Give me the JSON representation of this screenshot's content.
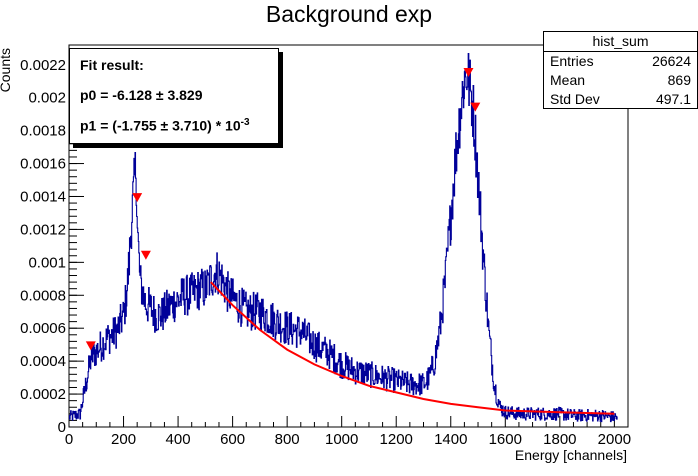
{
  "chart_data": {
    "type": "line",
    "title": "Background exp",
    "xlabel": "Energy [channels]",
    "ylabel": "Counts",
    "xlim": [
      0,
      2050
    ],
    "ylim": [
      0,
      0.00232
    ],
    "x_ticks": [
      0,
      200,
      400,
      600,
      800,
      1000,
      1200,
      1400,
      1600,
      1800,
      2000
    ],
    "y_ticks": [
      0,
      0.0002,
      0.0004,
      0.0006,
      0.0008,
      0.001,
      0.0012,
      0.0014,
      0.0016,
      0.0018,
      0.002,
      0.0022
    ],
    "y_tick_labels": [
      "0",
      "0.0002",
      "0.0004",
      "0.0006",
      "0.0008",
      "0.001",
      "0.0012",
      "0.0014",
      "0.0016",
      "0.0018",
      "0.002",
      "0.0022"
    ],
    "series": [
      {
        "kind": "histogram",
        "color": "#000099",
        "x": [
          0,
          20,
          40,
          60,
          80,
          100,
          120,
          140,
          160,
          180,
          200,
          210,
          220,
          230,
          240,
          245,
          250,
          260,
          270,
          280,
          300,
          320,
          340,
          360,
          380,
          400,
          420,
          440,
          460,
          480,
          500,
          520,
          540,
          560,
          580,
          600,
          650,
          700,
          750,
          800,
          850,
          900,
          950,
          1000,
          1050,
          1100,
          1150,
          1200,
          1250,
          1300,
          1320,
          1340,
          1360,
          1380,
          1400,
          1420,
          1440,
          1450,
          1460,
          1470,
          1480,
          1490,
          1500,
          1520,
          1540,
          1560,
          1580,
          1600,
          1650,
          1700,
          1750,
          1800,
          1850,
          1900,
          1950,
          2000
        ],
        "y": [
          6e-05,
          7e-05,
          8e-05,
          0.00025,
          0.00042,
          0.00046,
          0.0005,
          0.00054,
          0.00056,
          0.0006,
          0.00068,
          0.0008,
          0.001,
          0.0013,
          0.0015,
          0.0016,
          0.0012,
          0.00088,
          0.00082,
          0.00075,
          0.00072,
          0.00068,
          0.00068,
          0.00072,
          0.00075,
          0.00077,
          0.0008,
          0.0008,
          0.00082,
          0.00084,
          0.00084,
          0.0009,
          0.00095,
          0.0009,
          0.00082,
          0.00078,
          0.0007,
          0.0007,
          0.00065,
          0.0006,
          0.00058,
          0.0005,
          0.00045,
          0.00038,
          0.00034,
          0.00032,
          0.0003,
          0.00028,
          0.00026,
          0.00026,
          0.0003,
          0.0004,
          0.0006,
          0.0009,
          0.0013,
          0.0017,
          0.002,
          0.00212,
          0.00215,
          0.00205,
          0.00195,
          0.00175,
          0.0015,
          0.001,
          0.00055,
          0.00025,
          0.00012,
          9e-05,
          8e-05,
          8e-05,
          8e-05,
          8e-05,
          7e-05,
          7e-05,
          7e-05,
          6e-05
        ]
      },
      {
        "kind": "fit",
        "color": "#ff0000",
        "x": [
          520,
          600,
          700,
          800,
          900,
          1000,
          1100,
          1200,
          1300,
          1400,
          1500,
          1600,
          1700,
          1800,
          1900,
          2000
        ],
        "y": [
          0.00088,
          0.00074,
          0.00059,
          0.00047,
          0.00038,
          0.00031,
          0.00025,
          0.00021,
          0.00017,
          0.00014,
          0.00012,
          0.0001,
          9.5e-05,
          9e-05,
          8.5e-05,
          8e-05
        ]
      },
      {
        "kind": "markers",
        "color": "#ff0000",
        "x": [
          80,
          250,
          282,
          1465,
          1490
        ],
        "y": [
          0.00049,
          0.00139,
          0.00104,
          0.00215,
          0.00194
        ]
      }
    ]
  },
  "stats": {
    "title": "hist_sum",
    "rows": [
      {
        "label": "Entries",
        "value": "26624"
      },
      {
        "label": "Mean",
        "value": "869"
      },
      {
        "label": "Std Dev",
        "value": "497.1"
      }
    ]
  },
  "fit": {
    "heading": "Fit result:",
    "p0": "p0 = -6.128 ± 3.829",
    "p1_main": "p1 = (-1.755 ± 3.710) * 10",
    "p1_exp": "-3"
  }
}
